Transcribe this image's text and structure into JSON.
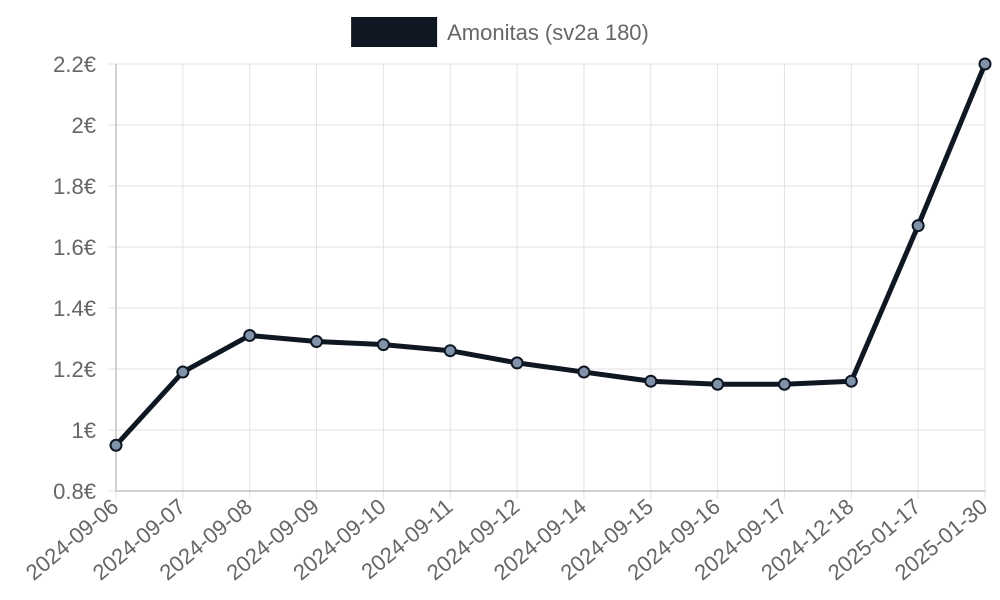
{
  "chart_data": {
    "type": "line",
    "title": "",
    "xlabel": "",
    "ylabel": "",
    "categories": [
      "2024-09-06",
      "2024-09-07",
      "2024-09-08",
      "2024-09-09",
      "2024-09-10",
      "2024-09-11",
      "2024-09-12",
      "2024-09-14",
      "2024-09-15",
      "2024-09-16",
      "2024-09-17",
      "2024-12-18",
      "2025-01-17",
      "2025-01-30"
    ],
    "series": [
      {
        "name": "Amonitas (sv2a 180)",
        "values": [
          0.95,
          1.19,
          1.31,
          1.29,
          1.28,
          1.26,
          1.22,
          1.19,
          1.16,
          1.15,
          1.15,
          1.16,
          1.67,
          2.2
        ],
        "color": "#0f1722",
        "point_color": "#8193a8"
      }
    ],
    "ylim": [
      0.8,
      2.2
    ],
    "y_ticks": [
      0.8,
      1.0,
      1.2,
      1.4,
      1.6,
      1.8,
      2.0,
      2.2
    ],
    "y_tick_labels": [
      "0.8€",
      "1€",
      "1.2€",
      "1.4€",
      "1.6€",
      "1.8€",
      "2€",
      "2.2€"
    ],
    "grid": true,
    "legend_position": "top-center"
  }
}
